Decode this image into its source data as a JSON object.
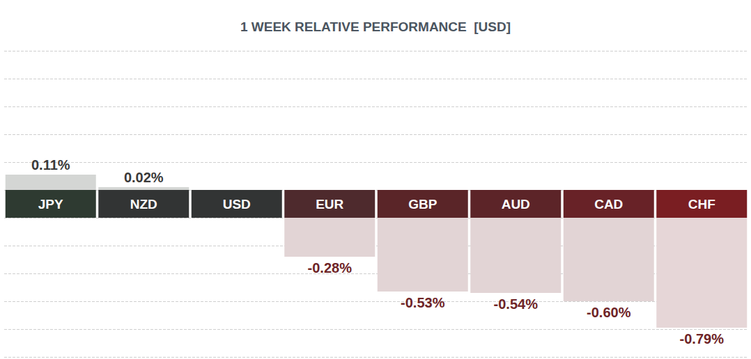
{
  "chart_data": {
    "type": "bar",
    "title": "1 WEEK RELATIVE PERFORMANCE  [USD]",
    "categories": [
      "JPY",
      "NZD",
      "USD",
      "EUR",
      "GBP",
      "AUD",
      "CAD",
      "CHF"
    ],
    "values": [
      0.11,
      0.02,
      null,
      -0.28,
      -0.53,
      -0.54,
      -0.6,
      -0.79
    ],
    "value_labels": [
      "0.11%",
      "0.02%",
      null,
      "-0.28%",
      "-0.53%",
      "-0.54%",
      "-0.60%",
      "-0.79%"
    ],
    "colors": [
      "#d4d6d4",
      "#d4d6d4",
      "#d4d6d4",
      "#e2d4d5",
      "#e2d4d5",
      "#e2d4d5",
      "#e2d4d5",
      "#e6d6d7"
    ],
    "ylim": [
      -1,
      1
    ],
    "yticks": [
      -1,
      -0.8,
      -0.6,
      -0.4,
      -0.2,
      0,
      0.2,
      0.4,
      0.6,
      0.8,
      1
    ],
    "grid": true,
    "tick_labels": false,
    "data_labels": true
  }
}
